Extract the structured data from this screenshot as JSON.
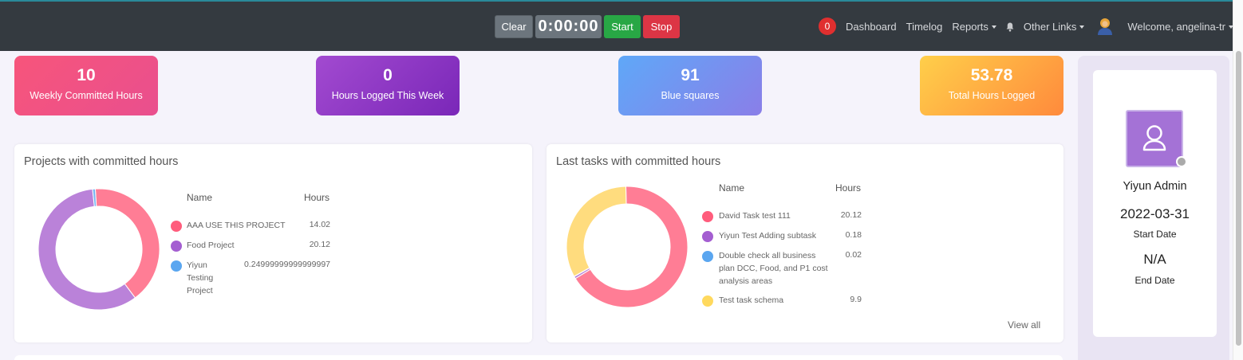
{
  "timer": {
    "clear_label": "Clear",
    "time": "0:00:00",
    "start_label": "Start",
    "stop_label": "Stop"
  },
  "nav": {
    "notification_count": "0",
    "dashboard": "Dashboard",
    "timelog": "Timelog",
    "reports": "Reports",
    "other_links": "Other Links",
    "welcome": "Welcome, angelina-tr"
  },
  "stats": [
    {
      "value": "10",
      "label": "Weekly Committed Hours"
    },
    {
      "value": "0",
      "label": "Hours Logged This Week"
    },
    {
      "value": "91",
      "label": "Blue squares"
    },
    {
      "value": "53.78",
      "label": "Total Hours Logged"
    }
  ],
  "projects": {
    "title": "Projects with committed hours",
    "col_name": "Name",
    "col_hours": "Hours",
    "rows": [
      {
        "name": "AAA USE THIS PROJECT",
        "hours": "14.02",
        "color": "#ff5c7c"
      },
      {
        "name": "Food Project",
        "hours": "20.12",
        "color": "#a45ed1"
      },
      {
        "name": "Yiyun Testing Project",
        "name_lines": [
          "Yiyun",
          "Testing",
          "Project"
        ],
        "hours": "0.24999999999999997",
        "color": "#5aa6f0"
      }
    ]
  },
  "tasks": {
    "title": "Last tasks with committed hours",
    "col_name": "Name",
    "col_hours": "Hours",
    "view_all": "View all",
    "rows": [
      {
        "name": "David Task test 111",
        "hours": "20.12",
        "color": "#ff5c7c"
      },
      {
        "name": "Yiyun Test Adding subtask",
        "hours": "0.18",
        "color": "#a45ed1"
      },
      {
        "name": "Double check all business plan DCC, Food, and P1 cost analysis areas",
        "name_lines": [
          "Double check all business",
          "plan DCC, Food, and P1 cost",
          "analysis areas"
        ],
        "hours": "0.02",
        "color": "#5aa6f0"
      },
      {
        "name": "Test task schema",
        "hours": "9.9",
        "color": "#ffd95e"
      }
    ]
  },
  "chart_data": [
    {
      "type": "pie",
      "categories": [
        "AAA USE THIS PROJECT",
        "Food Project",
        "Yiyun Testing Project"
      ],
      "values": [
        14.02,
        20.12,
        0.24999999999999997
      ],
      "colors": [
        "#ff7d95",
        "#ba82d9",
        "#77b6f2"
      ]
    },
    {
      "type": "pie",
      "categories": [
        "David Task test 111",
        "Yiyun Test Adding subtask",
        "Double check all business plan DCC, Food, and P1 cost analysis areas",
        "Test task schema"
      ],
      "values": [
        20.12,
        0.18,
        0.02,
        9.9
      ],
      "colors": [
        "#ff7d95",
        "#ba82d9",
        "#77b6f2",
        "#ffdc7e"
      ]
    }
  ],
  "profile": {
    "name": "Yiyun Admin",
    "start_date": "2022-03-31",
    "start_label": "Start Date",
    "end_date": "N/A",
    "end_label": "End Date"
  }
}
